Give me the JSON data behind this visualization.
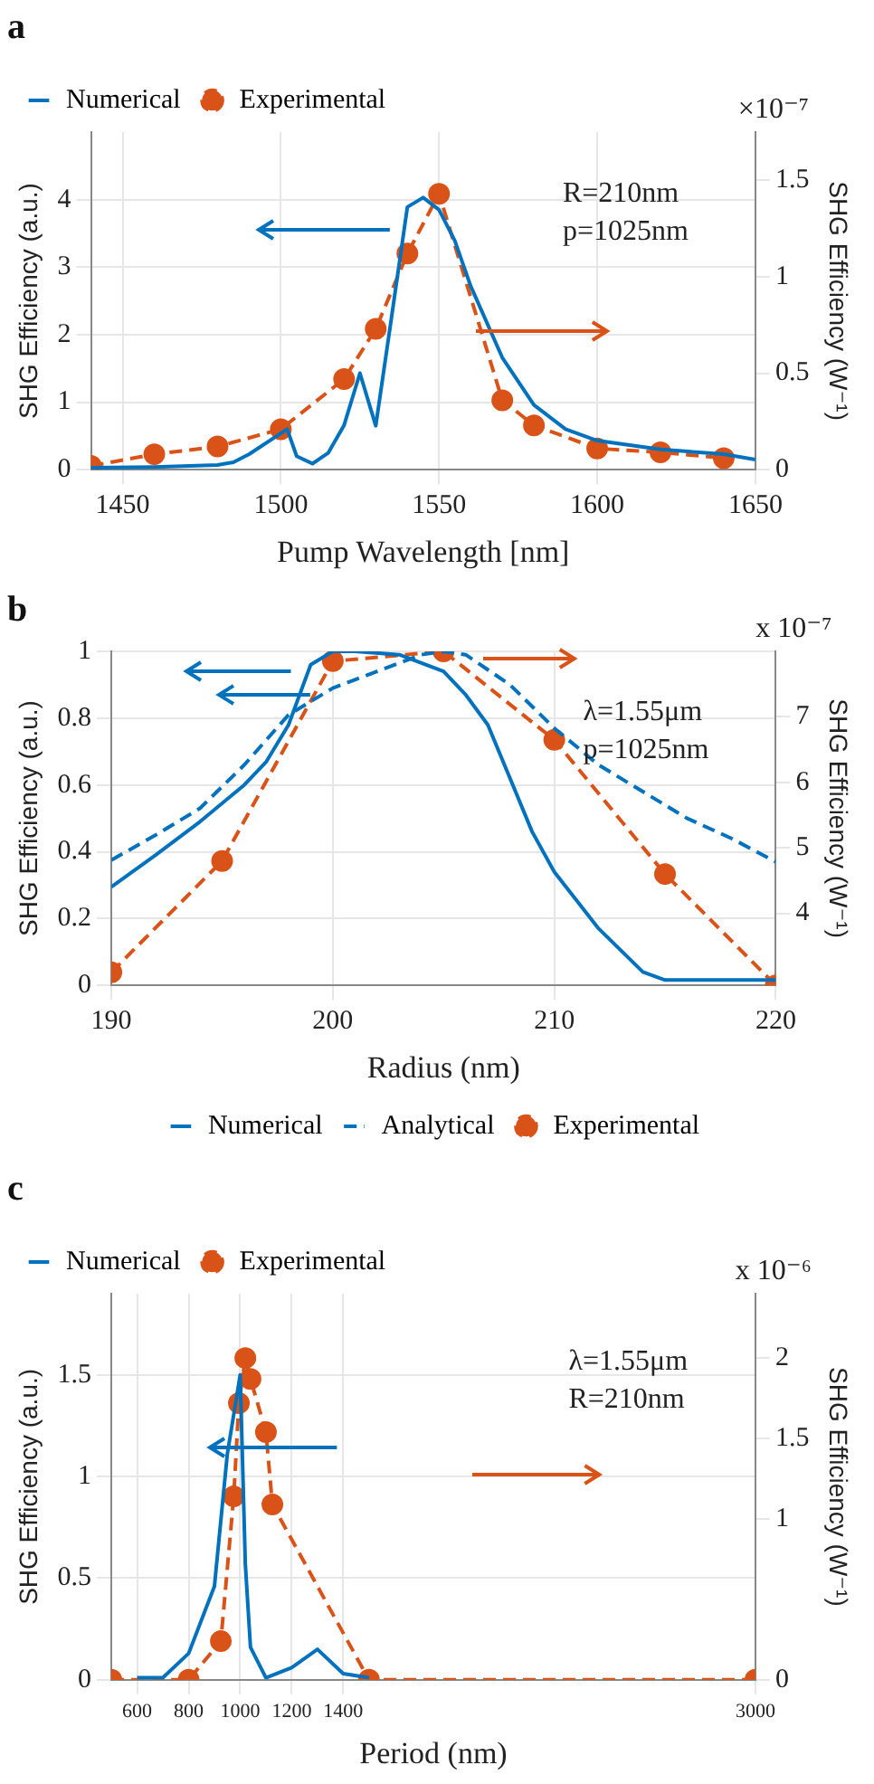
{
  "chart_data": [
    {
      "type": "line",
      "title": "a",
      "xlabel": "Pump Wavelength [nm]",
      "ylabel": "SHG Efficiency (a.u.)",
      "y2label": "SHG Efficiency (W⁻¹)",
      "annotations": [
        "×10⁻⁷",
        "R=210nm",
        "p=1025nm"
      ],
      "xlim": [
        1440,
        1650
      ],
      "xticks": [
        1450,
        1500,
        1550,
        1600,
        1650
      ],
      "ylim": [
        0,
        5
      ],
      "yticks": [
        0,
        1,
        2,
        3,
        4
      ],
      "y2lim": [
        0,
        1.75
      ],
      "y2ticks": [
        0,
        0.5,
        1,
        1.5
      ],
      "grid": true,
      "legend": "top left",
      "series": [
        {
          "name": "Numerical",
          "color": "#0072bd",
          "type": "line",
          "marker": "none",
          "line_style": "solid",
          "x": [
            1440,
            1460,
            1480,
            1485,
            1490,
            1502,
            1505,
            1510,
            1515,
            1520,
            1525,
            1530,
            1535,
            1540,
            1545,
            1550,
            1555,
            1560,
            1570,
            1580,
            1590,
            1600,
            1620,
            1640,
            1650
          ],
          "values": [
            0.03,
            0.04,
            0.07,
            0.11,
            0.23,
            0.6,
            0.2,
            0.09,
            0.25,
            0.66,
            1.43,
            0.65,
            2.26,
            3.89,
            4.03,
            3.85,
            3.39,
            2.72,
            1.66,
            0.96,
            0.6,
            0.43,
            0.3,
            0.23,
            0.15
          ]
        },
        {
          "name": "Experimental",
          "color": "#d95319",
          "type": "line",
          "marker": "circle",
          "line_style": "dashed",
          "axis": "y2",
          "x": [
            1440,
            1460,
            1480,
            1500,
            1520,
            1530,
            1540,
            1550,
            1570,
            1580,
            1600,
            1620,
            1640
          ],
          "values": [
            0.02,
            0.08,
            0.12,
            0.21,
            0.47,
            0.73,
            1.12,
            1.43,
            0.36,
            0.23,
            0.11,
            0.09,
            0.06
          ]
        }
      ]
    },
    {
      "type": "line",
      "title": "b",
      "xlabel": "Radius (nm)",
      "ylabel": "SHG Efficiency (a.u.)",
      "y2label": "SHG Efficiency (W⁻¹)",
      "annotations": [
        "x 10⁻⁷",
        "λ=1.55μm",
        "p=1025nm"
      ],
      "xlim": [
        190,
        220
      ],
      "xticks": [
        190,
        200,
        210,
        220
      ],
      "ylim": [
        0,
        1
      ],
      "yticks": [
        0,
        0.2,
        0.4,
        0.6,
        0.8,
        1
      ],
      "y2lim": [
        2.9,
        8
      ],
      "y2ticks": [
        4,
        5,
        6,
        7
      ],
      "grid": true,
      "legend": "bottom",
      "series": [
        {
          "name": "Numerical",
          "color": "#0072bd",
          "type": "line",
          "marker": "none",
          "line_style": "solid",
          "x": [
            190,
            192,
            194,
            196,
            197,
            198,
            199,
            200,
            201,
            203,
            205,
            206,
            207,
            208,
            209,
            210,
            212,
            214,
            215,
            220
          ],
          "values": [
            0.295,
            0.39,
            0.49,
            0.6,
            0.67,
            0.78,
            0.96,
            1.0,
            1.0,
            0.99,
            0.94,
            0.87,
            0.78,
            0.62,
            0.46,
            0.34,
            0.17,
            0.04,
            0.016,
            0.016
          ]
        },
        {
          "name": "Analytical",
          "color": "#0072bd",
          "type": "line",
          "marker": "none",
          "line_style": "dashed",
          "x": [
            190,
            192,
            194,
            196,
            198,
            200,
            202,
            204,
            205,
            206,
            208,
            210,
            212,
            214,
            216,
            218,
            220
          ],
          "values": [
            0.375,
            0.45,
            0.53,
            0.66,
            0.81,
            0.89,
            0.94,
            0.99,
            1.0,
            0.99,
            0.9,
            0.77,
            0.66,
            0.58,
            0.5,
            0.44,
            0.37
          ]
        },
        {
          "name": "Experimental",
          "color": "#d95319",
          "type": "line",
          "marker": "circle",
          "line_style": "dashed",
          "axis": "y2",
          "x": [
            190,
            195,
            200,
            205,
            210,
            215,
            220
          ],
          "values": [
            3.1,
            4.8,
            7.85,
            8.0,
            6.65,
            4.6,
            2.9
          ]
        }
      ]
    },
    {
      "type": "line",
      "title": "c",
      "xlabel": "Period (nm)",
      "ylabel": "SHG Efficiency (a.u.)",
      "y2label": "SHG Efficiency (W⁻¹)",
      "annotations": [
        "x 10⁻⁶",
        "λ=1.55μm",
        "R=210nm"
      ],
      "xlim": [
        500,
        3000
      ],
      "xticks": [
        600,
        800,
        1000,
        1200,
        1400,
        3000
      ],
      "ylim": [
        0,
        1.9
      ],
      "yticks": [
        0,
        0.5,
        1,
        1.5
      ],
      "y2lim": [
        0,
        2.4
      ],
      "y2ticks": [
        0,
        1,
        1.5,
        2
      ],
      "grid": true,
      "legend": "top left",
      "series": [
        {
          "name": "Numerical",
          "color": "#0072bd",
          "type": "line",
          "marker": "none",
          "line_style": "solid",
          "x": [
            600,
            700,
            800,
            900,
            950,
            1000,
            1020,
            1040,
            1100,
            1200,
            1300,
            1400,
            1500
          ],
          "values": [
            0.01,
            0.01,
            0.13,
            0.46,
            1.11,
            1.5,
            0.57,
            0.16,
            0.01,
            0.06,
            0.15,
            0.03,
            0.01
          ]
        },
        {
          "name": "Experimental",
          "color": "#d95319",
          "type": "line",
          "marker": "circle",
          "line_style": "dashed",
          "axis": "y2",
          "x": [
            500,
            800,
            925,
            975,
            995,
            1020,
            1040,
            1100,
            1125,
            1500,
            3000
          ],
          "values": [
            0,
            0,
            0.24,
            1.14,
            1.72,
            2.0,
            1.87,
            1.54,
            1.09,
            0,
            0
          ]
        }
      ]
    }
  ]
}
